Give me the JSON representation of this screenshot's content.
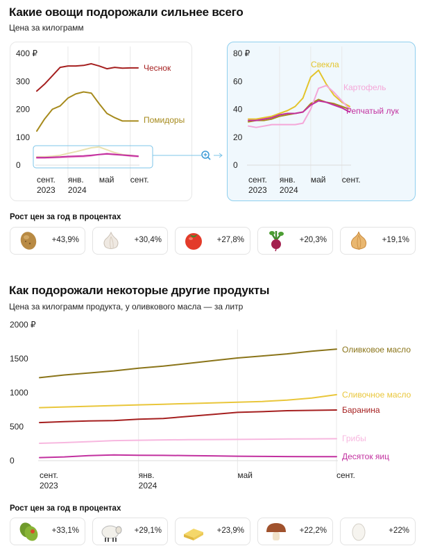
{
  "section1": {
    "title": "Какие овощи подорожали сильнее всего",
    "subtitle": "Цена за килограмм",
    "growth_title": "Рост цен за год в процентах"
  },
  "section2": {
    "title": "Как подорожали некоторые другие продукты",
    "subtitle": "Цена за килограмм продукта, у оливкового масла — за литр",
    "growth_title": "Рост цен за год в процентах"
  },
  "icons": {
    "zoom": "zoom-in-icon",
    "veg": [
      "potato-icon",
      "garlic-icon",
      "tomato-icon",
      "beet-icon",
      "onion-icon"
    ],
    "other": [
      "olive-icon",
      "sheep-icon",
      "butter-icon",
      "mushroom-icon",
      "egg-icon"
    ]
  },
  "growth_veg": [
    {
      "item": "potato",
      "pct": "+43,9%"
    },
    {
      "item": "garlic",
      "pct": "+30,4%"
    },
    {
      "item": "tomato",
      "pct": "+27,8%"
    },
    {
      "item": "beet",
      "pct": "+20,3%"
    },
    {
      "item": "onion",
      "pct": "+19,1%"
    }
  ],
  "growth_other": [
    {
      "item": "olive",
      "pct": "+33,1%"
    },
    {
      "item": "lamb",
      "pct": "+29,1%"
    },
    {
      "item": "butter",
      "pct": "+23,9%"
    },
    {
      "item": "mushroom",
      "pct": "+22,2%"
    },
    {
      "item": "egg",
      "pct": "+22%"
    }
  ],
  "chart_data": [
    {
      "type": "line",
      "title": "",
      "x": [
        0,
        1,
        2,
        3,
        4,
        5,
        6,
        7,
        8,
        9,
        10,
        11,
        12,
        13
      ],
      "x_ticks": [
        {
          "x": 0,
          "line1": "сент.",
          "line2": "2023"
        },
        {
          "x": 4,
          "line1": "янв.",
          "line2": "2024"
        },
        {
          "x": 8,
          "line1": "май",
          "line2": ""
        },
        {
          "x": 12,
          "line1": "сент.",
          "line2": ""
        }
      ],
      "y_ticks": [
        "400 ₽",
        "300",
        "200",
        "100",
        "0"
      ],
      "y_tick_values": [
        400,
        300,
        200,
        100,
        0
      ],
      "ylim": [
        0,
        400
      ],
      "grid": "vertical at x ticks",
      "series": [
        {
          "name": "Чеснок",
          "color": "#a51f1f",
          "values": [
            265,
            290,
            320,
            350,
            355,
            355,
            357,
            363,
            355,
            345,
            350,
            347,
            348,
            348
          ]
        },
        {
          "name": "Помидоры",
          "color": "#a68a1c",
          "values": [
            122,
            165,
            200,
            212,
            240,
            255,
            262,
            258,
            220,
            185,
            170,
            158,
            158,
            158
          ]
        },
        {
          "name": "",
          "color": "#e8e1b0",
          "values": [
            30,
            30,
            32,
            35,
            42,
            48,
            55,
            62,
            65,
            55,
            45,
            38,
            35,
            32
          ]
        },
        {
          "name": "",
          "color": "#f4a7d8",
          "values": [
            25,
            25,
            26,
            27,
            28,
            29,
            30,
            33,
            38,
            42,
            40,
            36,
            32,
            30
          ]
        },
        {
          "name": "",
          "color": "#c2309f",
          "values": [
            27,
            27,
            28,
            29,
            31,
            32,
            33,
            35,
            38,
            40,
            38,
            36,
            34,
            32
          ]
        }
      ]
    },
    {
      "type": "line",
      "title": "",
      "x": [
        0,
        1,
        2,
        3,
        4,
        5,
        6,
        7,
        8,
        9,
        10,
        11,
        12,
        13
      ],
      "x_ticks": [
        {
          "x": 0,
          "line1": "сент.",
          "line2": "2023"
        },
        {
          "x": 4,
          "line1": "янв.",
          "line2": "2024"
        },
        {
          "x": 8,
          "line1": "май",
          "line2": ""
        },
        {
          "x": 12,
          "line1": "сент.",
          "line2": ""
        }
      ],
      "y_ticks": [
        "80 ₽",
        "60",
        "40",
        "20",
        "0"
      ],
      "y_tick_values": [
        80,
        60,
        40,
        20,
        0
      ],
      "ylim": [
        0,
        80
      ],
      "grid": "vertical at x ticks",
      "series": [
        {
          "name": "Свекла",
          "color": "#e3c42b",
          "values": [
            33,
            33,
            34,
            35,
            37,
            39,
            42,
            48,
            63,
            68,
            58,
            50,
            45,
            42
          ]
        },
        {
          "name": "Картофель",
          "color": "#f4a7d8",
          "values": [
            28,
            27,
            28,
            29,
            29,
            29,
            29,
            30,
            40,
            55,
            57,
            52,
            46,
            40
          ]
        },
        {
          "name": "Репчатый лук",
          "color": "#c2309f",
          "values": [
            32,
            32,
            33,
            34,
            36,
            37,
            37,
            38,
            43,
            46,
            45,
            43,
            41,
            38
          ]
        },
        {
          "name": "",
          "color": "#a68a1c",
          "values": [
            31,
            32,
            32,
            33,
            35,
            36,
            37,
            38,
            44,
            47,
            45,
            44,
            42,
            40
          ]
        }
      ]
    },
    {
      "type": "line",
      "title": "",
      "x": [
        0,
        1,
        2,
        3,
        4,
        5,
        6,
        7,
        8,
        9,
        10,
        11,
        12
      ],
      "x_ticks": [
        {
          "x": 0,
          "line1": "сент.",
          "line2": "2023"
        },
        {
          "x": 4,
          "line1": "янв.",
          "line2": "2024"
        },
        {
          "x": 8,
          "line1": "май",
          "line2": ""
        },
        {
          "x": 12,
          "line1": "сент.",
          "line2": ""
        }
      ],
      "y_ticks": [
        "2000 ₽",
        "1500",
        "1000",
        "500",
        "0"
      ],
      "y_tick_values": [
        2000,
        1500,
        1000,
        500,
        0
      ],
      "ylim": [
        0,
        2000
      ],
      "grid": "vertical at x ticks",
      "series": [
        {
          "name": "Оливковое масло",
          "color": "#8a7419",
          "values": [
            1220,
            1260,
            1290,
            1320,
            1360,
            1390,
            1430,
            1470,
            1510,
            1540,
            1570,
            1610,
            1640
          ]
        },
        {
          "name": "Сливочное масло",
          "color": "#e9c63a",
          "values": [
            780,
            790,
            800,
            810,
            820,
            830,
            840,
            850,
            860,
            870,
            890,
            920,
            970
          ]
        },
        {
          "name": "Баранина",
          "color": "#a51f1f",
          "values": [
            560,
            575,
            585,
            590,
            610,
            620,
            650,
            680,
            710,
            720,
            735,
            740,
            745
          ]
        },
        {
          "name": "Грибы",
          "color": "#f7b7df",
          "values": [
            255,
            265,
            280,
            295,
            300,
            305,
            308,
            310,
            312,
            315,
            318,
            320,
            322
          ]
        },
        {
          "name": "Десяток яиц",
          "color": "#c2309f",
          "values": [
            45,
            55,
            75,
            85,
            80,
            78,
            75,
            70,
            65,
            62,
            60,
            58,
            58
          ]
        }
      ]
    }
  ]
}
